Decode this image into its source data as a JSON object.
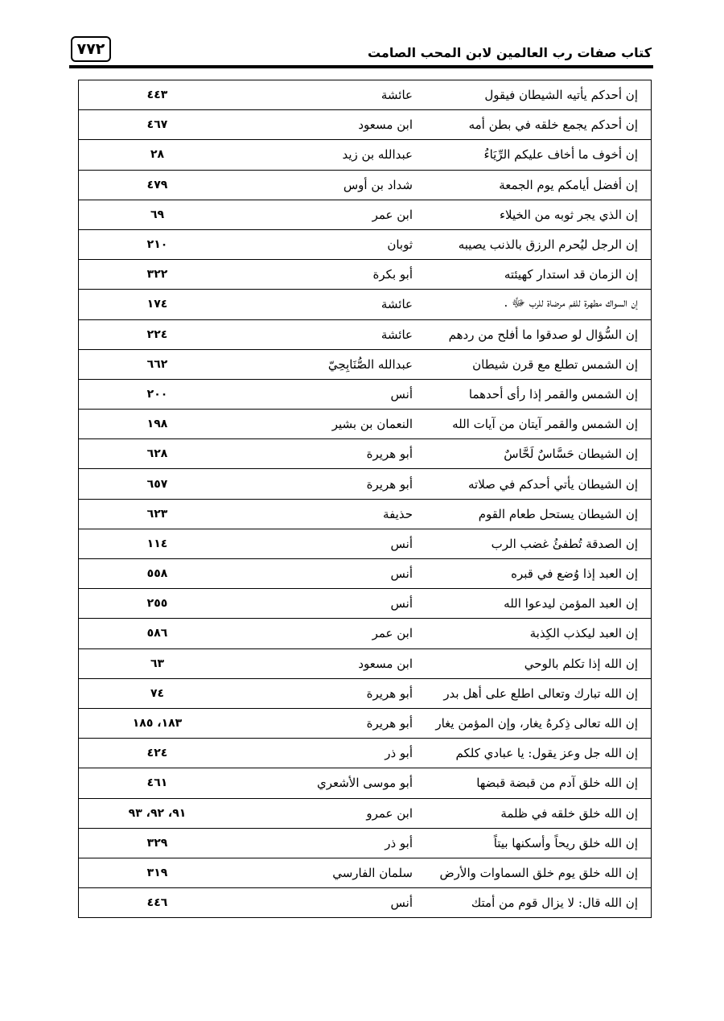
{
  "header": {
    "page_number": "٧٧٢",
    "book_title": "كتاب صفات رب العالمين لابن المحب الصامت"
  },
  "rows": [
    {
      "text": "إن أحدكم يأتيه الشيطان فيقول",
      "narrator": "عائشة",
      "pages": "٤٤٣"
    },
    {
      "text": "إن أحدكم يجمع خلقه في بطن أمه",
      "narrator": "ابن مسعود",
      "pages": "٤٦٧"
    },
    {
      "text": "إن أخوف ما أخاف عليكم الرِّيَاءُ",
      "narrator": "عبدالله بن زيد",
      "pages": "٢٨"
    },
    {
      "text": "إن أفضل أيامكم يوم الجمعة",
      "narrator": "شداد بن أوس",
      "pages": "٤٧٩"
    },
    {
      "text": "إن الذي يجر ثوبه من الخيلاء",
      "narrator": "ابن عمر",
      "pages": "٦٩"
    },
    {
      "text": "إن الرجل ليُحرم الرزق بالذنب يصيبه",
      "narrator": "ثوبان",
      "pages": "٢١٠"
    },
    {
      "text": "إن الزمان قد استدار كهيئته",
      "narrator": "أبو بكرة",
      "pages": "٣٢٢"
    },
    {
      "text": "إن السواك مطهرة للفم مرضاة للرب ﷻ .",
      "narrator": "عائشة",
      "pages": "١٧٤"
    },
    {
      "text": "إن السُّؤال لو صدقوا ما أفلح من ردهم",
      "narrator": "عائشة",
      "pages": "٢٢٤"
    },
    {
      "text": "إن الشمس تطلع مع قرن شيطان",
      "narrator": "عبدالله الصُّنَابِحِيّ",
      "pages": "٦٦٢"
    },
    {
      "text": "إن الشمس والقمر إذا رأى أحدهما",
      "narrator": "أنس",
      "pages": "٢٠٠"
    },
    {
      "text": "إن الشمس والقمر آيتان من آيات الله",
      "narrator": "النعمان بن بشير",
      "pages": "١٩٨"
    },
    {
      "text": "إن الشيطان حَسَّاسٌ لَحَّاسٌ",
      "narrator": "أبو هريرة",
      "pages": "٦٢٨"
    },
    {
      "text": "إن الشيطان يأتي أحدكم في صلاته",
      "narrator": "أبو هريرة",
      "pages": "٦٥٧"
    },
    {
      "text": "إن الشيطان يستحل طعام القوم",
      "narrator": "حذيفة",
      "pages": "٦٢٣"
    },
    {
      "text": "إن الصدقة تُطفئُ غضب الرب",
      "narrator": "أنس",
      "pages": "١١٤"
    },
    {
      "text": "إن العبد إذا وُضع في قبره",
      "narrator": "أنس",
      "pages": "٥٥٨"
    },
    {
      "text": "إن العبد المؤمن ليدعوا الله",
      "narrator": "أنس",
      "pages": "٢٥٥"
    },
    {
      "text": "إن العبد ليكذب الكِذبة",
      "narrator": "ابن عمر",
      "pages": "٥٨٦"
    },
    {
      "text": "إن الله إذا تكلم بالوحي",
      "narrator": "ابن مسعود",
      "pages": "٦٣"
    },
    {
      "text": "إن الله تبارك وتعالى اطلع على أهل بدر",
      "narrator": "أبو هريرة",
      "pages": "٧٤"
    },
    {
      "text": "إن الله تعالى ذِكرهُ يغار، وإن المؤمن يغار",
      "narrator": "أبو هريرة",
      "pages": "١٨٣، ١٨٥"
    },
    {
      "text": "إن الله جل وعز يقول: يا عبادي كلكم",
      "narrator": "أبو ذر",
      "pages": "٤٢٤"
    },
    {
      "text": "إن الله خلق آدم من قبضة قبضها",
      "narrator": "أبو موسى الأشعري",
      "pages": "٤٦١"
    },
    {
      "text": "إن الله خلق خلقه في ظلمة",
      "narrator": "ابن عمرو",
      "pages": "٩١، ٩٢، ٩٣"
    },
    {
      "text": "إن الله خلق ريحاً وأسكنها بيتاً",
      "narrator": "أبو ذر",
      "pages": "٣٢٩"
    },
    {
      "text": "إن الله خلق يوم خلق السماوات والأرض",
      "narrator": "سلمان الفارسي",
      "pages": "٣١٩"
    },
    {
      "text": "إن الله قال: لا يزال قوم من أمتك",
      "narrator": "أنس",
      "pages": "٤٤٦"
    }
  ]
}
